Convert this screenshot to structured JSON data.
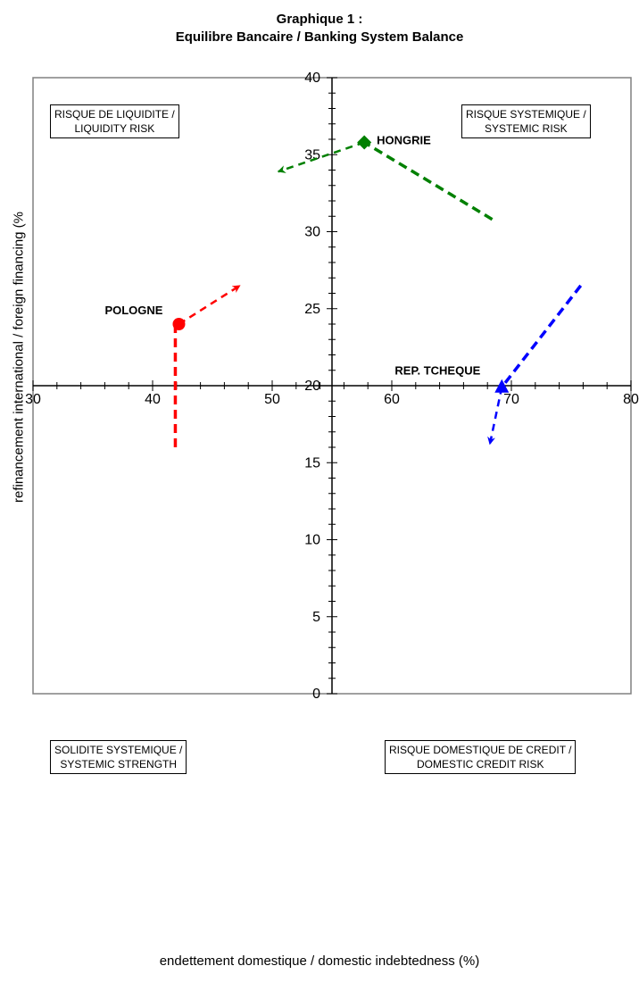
{
  "chart_data": {
    "type": "scatter",
    "title": "Graphique 1 :",
    "subtitle": "Equilibre Bancaire / Banking System Balance",
    "xlabel": "endettement domestique / domestic indebtedness (%)",
    "ylabel": "refinancement international / foreign financing (%",
    "xlim": [
      30,
      80
    ],
    "ylim": [
      0,
      40
    ],
    "x_ticks": [
      "30",
      "40",
      "50",
      "60",
      "70",
      "80"
    ],
    "y_ticks": [
      "0",
      "5",
      "10",
      "15",
      "20",
      "25",
      "30",
      "35",
      "40"
    ],
    "axis_cross": {
      "x": 55,
      "y": 20
    },
    "grid": false,
    "quadrants": {
      "top_left": [
        "RISQUE DE LIQUIDITE /",
        "LIQUIDITY RISK"
      ],
      "top_right": [
        "RISQUE SYSTEMIQUE /",
        "SYSTEMIC RISK"
      ],
      "bottom_left": [
        "SOLIDITE SYSTEMIQUE /",
        "SYSTEMIC STRENGTH"
      ],
      "bottom_right": [
        "RISQUE DOMESTIQUE DE CREDIT /",
        "DOMESTIC CREDIT RISK"
      ]
    },
    "series": [
      {
        "name": "POLOGNE",
        "color": "#ff0000",
        "marker": "circle",
        "point": [
          42.2,
          24
        ],
        "past_path": [
          [
            41.9,
            16
          ],
          [
            41.9,
            24
          ]
        ],
        "future_path": [
          [
            42.2,
            24
          ],
          [
            47.3,
            26.5
          ]
        ]
      },
      {
        "name": "HONGRIE",
        "color": "#008000",
        "marker": "diamond",
        "point": [
          57.7,
          35.8
        ],
        "past_path": [
          [
            68.4,
            30.8
          ],
          [
            57.7,
            35.8
          ]
        ],
        "future_path": [
          [
            57.7,
            35.8
          ],
          [
            50.5,
            33.9
          ]
        ]
      },
      {
        "name": "REP. TCHEQUE",
        "color": "#0000ff",
        "marker": "triangle",
        "point": [
          69.2,
          19.9
        ],
        "past_path": [
          [
            75.8,
            26.5
          ],
          [
            69.2,
            19.9
          ]
        ],
        "future_path": [
          [
            69.2,
            19.9
          ],
          [
            68.2,
            16.2
          ]
        ]
      }
    ]
  }
}
